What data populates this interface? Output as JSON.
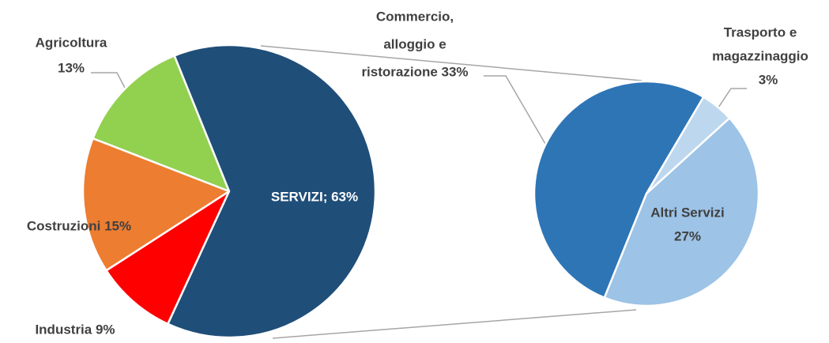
{
  "chart_data": [
    {
      "type": "pie",
      "labels": [
        [
          "Agricoltura",
          "13%"
        ],
        [
          "Costruzioni 15%"
        ],
        [
          "Industria 9%"
        ],
        [
          "SERVIZI; 63%"
        ]
      ],
      "values": [
        13,
        15,
        9,
        63
      ],
      "colors": [
        "#92d050",
        "#ed7d31",
        "#ff0000",
        "#1f4e79"
      ]
    },
    {
      "type": "pie",
      "labels": [
        [
          "Commercio,",
          "alloggio e",
          "ristorazione 33%"
        ],
        [
          "Trasporto e",
          "magazzinaggio",
          "3%"
        ],
        [
          "Altri Servizi",
          "27%"
        ]
      ],
      "values": [
        33,
        3,
        27
      ],
      "colors": [
        "#2e75b6",
        "#bdd7ee",
        "#9dc3e6"
      ]
    }
  ]
}
